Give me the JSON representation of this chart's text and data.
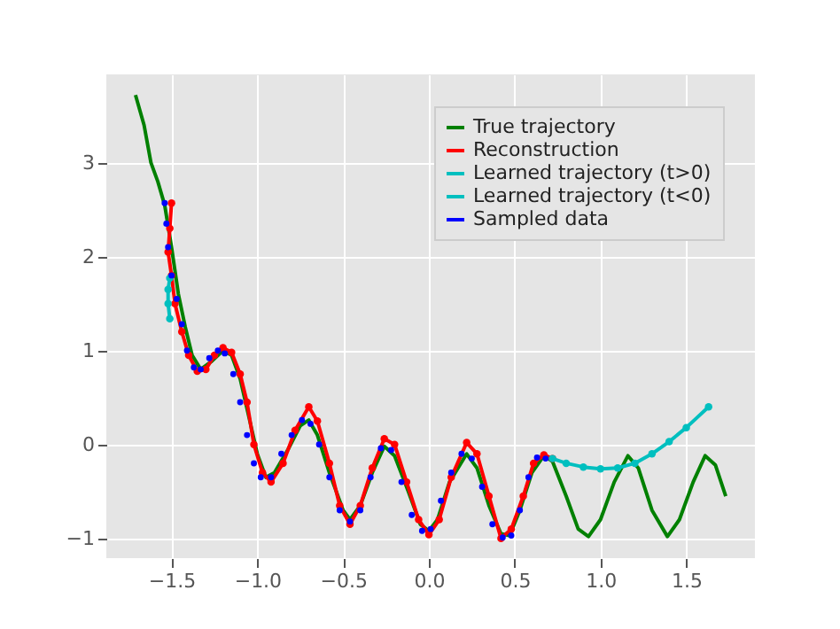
{
  "chart_data": {
    "type": "line",
    "legend": "top right",
    "grid": true,
    "marker": "circle",
    "xlim": [
      -1.88,
      1.9
    ],
    "ylim": [
      -1.21,
      3.94
    ],
    "xticks": [
      {
        "value": -1.5,
        "label": "−1.5"
      },
      {
        "value": -1,
        "label": "−1.0"
      },
      {
        "value": -0.5,
        "label": "−0.5"
      },
      {
        "value": 0,
        "label": "0.0"
      },
      {
        "value": 0.5,
        "label": "0.5"
      },
      {
        "value": 1,
        "label": "1.0"
      },
      {
        "value": 1.5,
        "label": "1.5"
      }
    ],
    "yticks": [
      {
        "value": -1,
        "label": "−1"
      },
      0,
      1,
      2,
      3
    ],
    "series": [
      {
        "name": "True trajectory",
        "color": "#008000",
        "marker": "none",
        "x": [
          -1.71,
          -1.66,
          -1.62,
          -1.58,
          -1.54,
          -1.5,
          -1.46,
          -1.42,
          -1.38,
          -1.33,
          -1.27,
          -1.2,
          -1.15,
          -1.1,
          -1.05,
          -1.0,
          -0.95,
          -0.9,
          -0.82,
          -0.75,
          -0.7,
          -0.65,
          -0.58,
          -0.5,
          -0.46,
          -0.4,
          -0.33,
          -0.26,
          -0.2,
          -0.12,
          -0.05,
          0.0,
          0.05,
          0.12,
          0.22,
          0.28,
          0.35,
          0.42,
          0.47,
          0.53,
          0.6,
          0.67,
          0.72,
          0.8,
          0.87,
          0.93,
          1.0,
          1.08,
          1.16,
          1.22,
          1.3,
          1.39,
          1.46,
          1.54,
          1.61,
          1.67,
          1.73
        ],
        "values": [
          3.72,
          3.4,
          3.0,
          2.8,
          2.55,
          2.1,
          1.6,
          1.25,
          0.95,
          0.8,
          0.88,
          1.0,
          0.95,
          0.7,
          0.3,
          -0.1,
          -0.35,
          -0.3,
          -0.05,
          0.2,
          0.26,
          0.1,
          -0.3,
          -0.7,
          -0.8,
          -0.65,
          -0.3,
          -0.02,
          -0.12,
          -0.5,
          -0.85,
          -0.92,
          -0.8,
          -0.4,
          -0.1,
          -0.25,
          -0.65,
          -0.95,
          -0.97,
          -0.7,
          -0.3,
          -0.12,
          -0.18,
          -0.55,
          -0.9,
          -0.98,
          -0.8,
          -0.4,
          -0.12,
          -0.25,
          -0.7,
          -0.98,
          -0.8,
          -0.4,
          -0.12,
          -0.22,
          -0.55
        ]
      },
      {
        "name": "Reconstruction",
        "color": "#ff0000",
        "x": [
          -1.5,
          -1.51,
          -1.52,
          -1.5,
          -1.48,
          -1.44,
          -1.4,
          -1.35,
          -1.3,
          -1.25,
          -1.2,
          -1.15,
          -1.1,
          -1.06,
          -1.02,
          -0.97,
          -0.92,
          -0.85,
          -0.78,
          -0.7,
          -0.65,
          -0.58,
          -0.52,
          -0.46,
          -0.4,
          -0.33,
          -0.26,
          -0.2,
          -0.13,
          -0.06,
          0.0,
          0.06,
          0.13,
          0.22,
          0.28,
          0.35,
          0.42,
          0.48,
          0.55,
          0.61,
          0.67,
          0.72
        ],
        "values": [
          2.57,
          2.3,
          2.05,
          1.8,
          1.5,
          1.2,
          0.95,
          0.78,
          0.8,
          0.95,
          1.03,
          0.98,
          0.75,
          0.45,
          0.0,
          -0.3,
          -0.4,
          -0.2,
          0.15,
          0.4,
          0.25,
          -0.2,
          -0.65,
          -0.85,
          -0.65,
          -0.25,
          0.06,
          0.0,
          -0.4,
          -0.8,
          -0.96,
          -0.8,
          -0.35,
          0.02,
          -0.1,
          -0.55,
          -1.0,
          -0.9,
          -0.55,
          -0.2,
          -0.11,
          -0.15
        ]
      },
      {
        "name": "Learned trajectory (t>0)",
        "color": "#00bfbf",
        "x": [
          0.72,
          0.8,
          0.9,
          1.0,
          1.1,
          1.2,
          1.3,
          1.4,
          1.5,
          1.63
        ],
        "values": [
          -0.15,
          -0.2,
          -0.24,
          -0.26,
          -0.25,
          -0.2,
          -0.1,
          0.03,
          0.18,
          0.4
        ]
      },
      {
        "name": "Learned trajectory (t<0)",
        "color": "#00bfbf",
        "x": [
          -1.51,
          -1.52,
          -1.52,
          -1.51
        ],
        "values": [
          1.77,
          1.65,
          1.5,
          1.34
        ]
      },
      {
        "name": "Sampled data",
        "color": "#0000ff",
        "type": "scatter",
        "x": [
          -1.54,
          -1.53,
          -1.52,
          -1.5,
          -1.47,
          -1.44,
          -1.41,
          -1.37,
          -1.33,
          -1.28,
          -1.23,
          -1.19,
          -1.14,
          -1.1,
          -1.06,
          -1.02,
          -0.98,
          -0.92,
          -0.86,
          -0.8,
          -0.74,
          -0.69,
          -0.64,
          -0.58,
          -0.52,
          -0.46,
          -0.4,
          -0.34,
          -0.28,
          -0.22,
          -0.16,
          -0.1,
          -0.04,
          0.01,
          0.07,
          0.13,
          0.19,
          0.25,
          0.31,
          0.37,
          0.43,
          0.48,
          0.53,
          0.58,
          0.63,
          0.68
        ],
        "values": [
          2.57,
          2.35,
          2.1,
          1.8,
          1.55,
          1.28,
          1.0,
          0.82,
          0.8,
          0.92,
          1.0,
          0.97,
          0.75,
          0.45,
          0.1,
          -0.2,
          -0.35,
          -0.35,
          -0.1,
          0.1,
          0.26,
          0.22,
          0.0,
          -0.35,
          -0.7,
          -0.82,
          -0.7,
          -0.35,
          -0.04,
          -0.06,
          -0.4,
          -0.75,
          -0.92,
          -0.9,
          -0.6,
          -0.3,
          -0.1,
          -0.15,
          -0.45,
          -0.85,
          -0.99,
          -0.97,
          -0.7,
          -0.35,
          -0.14,
          -0.15
        ]
      }
    ]
  }
}
